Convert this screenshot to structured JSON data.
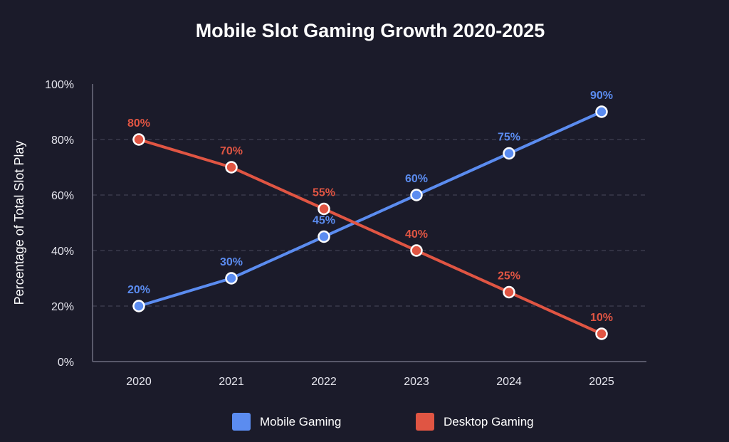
{
  "chart_data": {
    "type": "line",
    "title": "Mobile Slot Gaming Growth 2020-2025",
    "xlabel": "",
    "ylabel": "Percentage of Total Slot Play",
    "x": [
      "2020",
      "2021",
      "2022",
      "2023",
      "2024",
      "2025"
    ],
    "ylim": [
      0,
      100
    ],
    "yticks": [
      0,
      20,
      40,
      60,
      80,
      100
    ],
    "ytick_labels": [
      "0%",
      "20%",
      "40%",
      "60%",
      "80%",
      "100%"
    ],
    "grid": "horizontal-dashed",
    "legend": "bottom-center",
    "series": [
      {
        "name": "Mobile Gaming",
        "color": "#5b8cf0",
        "values": [
          20,
          30,
          45,
          60,
          75,
          90
        ],
        "labels": [
          "20%",
          "30%",
          "45%",
          "60%",
          "75%",
          "90%"
        ]
      },
      {
        "name": "Desktop Gaming",
        "color": "#e05543",
        "values": [
          80,
          70,
          55,
          40,
          25,
          10
        ],
        "labels": [
          "80%",
          "70%",
          "55%",
          "40%",
          "25%",
          "10%"
        ]
      }
    ]
  }
}
